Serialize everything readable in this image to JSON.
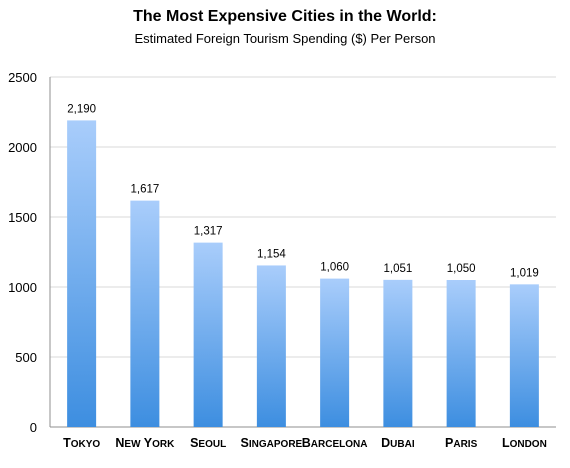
{
  "chart_data": {
    "type": "bar",
    "title": "The Most Expensive Cities in the World:",
    "subtitle": "Estimated Foreign Tourism Spending ($) Per Person",
    "xlabel": "",
    "ylabel": "",
    "categories": [
      "Tokyo",
      "New York",
      "Seoul",
      "Singapore",
      "Barcelona",
      "Dubai",
      "Paris",
      "London"
    ],
    "values": [
      2190,
      1617,
      1317,
      1154,
      1060,
      1051,
      1050,
      1019
    ],
    "data_labels": [
      "2,190",
      "1,617",
      "1,317",
      "1,154",
      "1,060",
      "1,051",
      "1,050",
      "1,019"
    ],
    "ylim": [
      0,
      2500
    ],
    "yticks": [
      0,
      500,
      1000,
      1500,
      2000,
      2500
    ],
    "grid": true,
    "legend": "none",
    "bar_gradient": [
      "#a9cdfb",
      "#3d8ee0"
    ],
    "grid_color": "#d9d9d9",
    "axis_color": "#8f8f8f"
  }
}
